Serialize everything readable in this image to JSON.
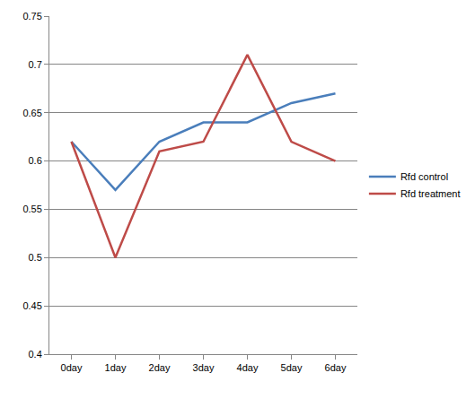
{
  "chart_data": {
    "type": "line",
    "categories": [
      "0day",
      "1day",
      "2day",
      "3day",
      "4day",
      "5day",
      "6day"
    ],
    "series": [
      {
        "name": "Rfd control",
        "color": "#4a7ebb",
        "values": [
          0.62,
          0.57,
          0.62,
          0.64,
          0.64,
          0.66,
          0.67
        ]
      },
      {
        "name": "Rfd treatment",
        "color": "#be4b48",
        "values": [
          0.62,
          0.5,
          0.61,
          0.62,
          0.71,
          0.62,
          0.6
        ]
      }
    ],
    "ylim": [
      0.4,
      0.75
    ],
    "yticks": [
      0.4,
      0.45,
      0.5,
      0.55,
      0.6,
      0.65,
      0.7,
      0.75
    ],
    "grid": true,
    "legend": "right"
  }
}
